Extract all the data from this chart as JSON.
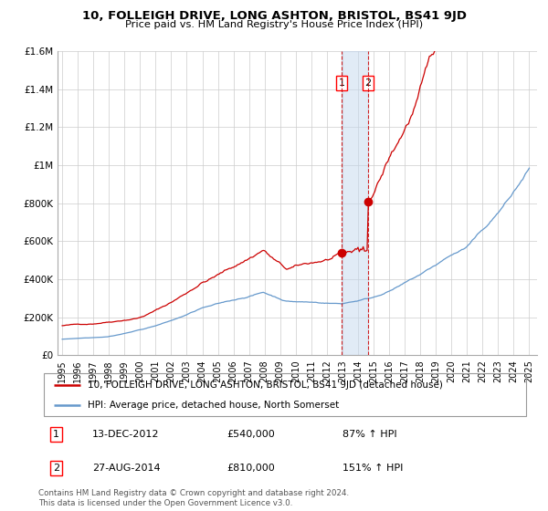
{
  "title": "10, FOLLEIGH DRIVE, LONG ASHTON, BRISTOL, BS41 9JD",
  "subtitle": "Price paid vs. HM Land Registry's House Price Index (HPI)",
  "legend_line1": "10, FOLLEIGH DRIVE, LONG ASHTON, BRISTOL, BS41 9JD (detached house)",
  "legend_line2": "HPI: Average price, detached house, North Somerset",
  "transaction1_date": "13-DEC-2012",
  "transaction1_price": "£540,000",
  "transaction1_hpi": "87% ↑ HPI",
  "transaction2_date": "27-AUG-2014",
  "transaction2_price": "£810,000",
  "transaction2_hpi": "151% ↑ HPI",
  "footer": "Contains HM Land Registry data © Crown copyright and database right 2024.\nThis data is licensed under the Open Government Licence v3.0.",
  "red_color": "#cc0000",
  "blue_color": "#6699cc",
  "background_color": "#ffffff",
  "grid_color": "#cccccc",
  "sale1_year": 2012.95,
  "sale1_value": 540000,
  "sale2_year": 2014.65,
  "sale2_value": 810000,
  "ylim": [
    0,
    1600000
  ],
  "xlim_start": 1994.7,
  "xlim_end": 2025.5
}
